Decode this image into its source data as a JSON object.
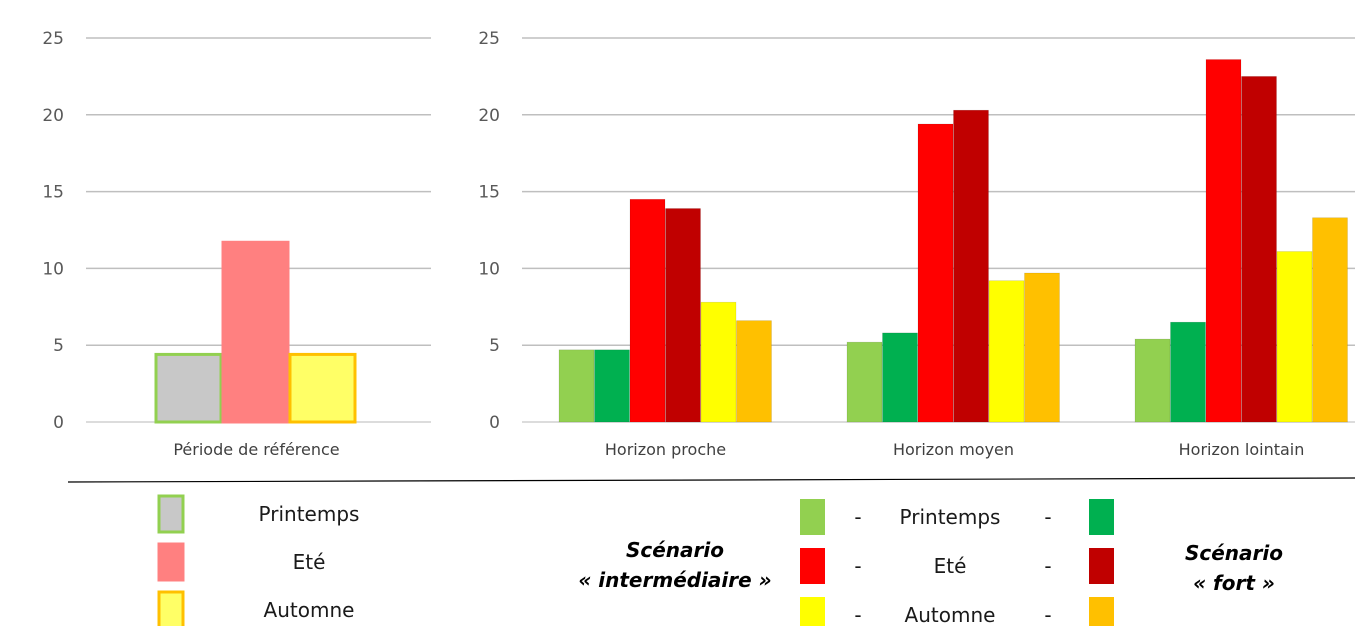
{
  "chart_data": [
    {
      "type": "bar",
      "ylim": [
        0,
        25
      ],
      "yticks": [
        0,
        5,
        10,
        15,
        20,
        25
      ],
      "grid": true,
      "categories": [
        "Période de référence"
      ],
      "series": [
        {
          "name": "Printemps",
          "values": [
            4.4
          ],
          "color": "#c8c8c8",
          "border": "#92d050"
        },
        {
          "name": "Eté",
          "values": [
            11.7
          ],
          "color": "#ff8080",
          "border": "#ff8080"
        },
        {
          "name": "Automne",
          "values": [
            4.4
          ],
          "color": "#ffff66",
          "border": "#ffc000"
        }
      ]
    },
    {
      "type": "bar",
      "ylim": [
        0,
        25
      ],
      "yticks": [
        0,
        5,
        10,
        15,
        20,
        25
      ],
      "grid": true,
      "categories": [
        "Horizon proche",
        "Horizon moyen",
        "Horizon lointain"
      ],
      "series": [
        {
          "values": [
            4.7,
            5.2,
            5.4
          ],
          "color": "#92d050"
        },
        {
          "values": [
            4.7,
            5.8,
            6.5
          ],
          "color": "#00b050"
        },
        {
          "values": [
            14.5,
            19.4,
            23.6
          ],
          "color": "#ff0000"
        },
        {
          "values": [
            13.9,
            20.3,
            22.5
          ],
          "color": "#c00000"
        },
        {
          "values": [
            7.8,
            9.2,
            11.1
          ],
          "color": "#ffff00"
        },
        {
          "values": [
            6.6,
            9.7,
            13.3
          ],
          "color": "#ffc000"
        }
      ]
    }
  ],
  "legend_reference": [
    {
      "label": "Printemps",
      "color": "#c8c8c8",
      "border": "#92d050"
    },
    {
      "label": "Eté",
      "color": "#ff8080",
      "border": "#ff8080"
    },
    {
      "label": "Automne",
      "color": "#ffff66",
      "border": "#ffc000"
    }
  ],
  "legend_scenarios": {
    "left_title_line1": "Scénario",
    "left_title_line2": "« intermédiaire »",
    "right_title_line1": "Scénario",
    "right_title_line2": "« fort »",
    "dash": "-",
    "rows": [
      {
        "label": "Printemps",
        "left_color": "#92d050",
        "right_color": "#00b050"
      },
      {
        "label": "Eté",
        "left_color": "#ff0000",
        "right_color": "#c00000"
      },
      {
        "label": "Automne",
        "left_color": "#ffff00",
        "right_color": "#ffc000"
      }
    ]
  }
}
